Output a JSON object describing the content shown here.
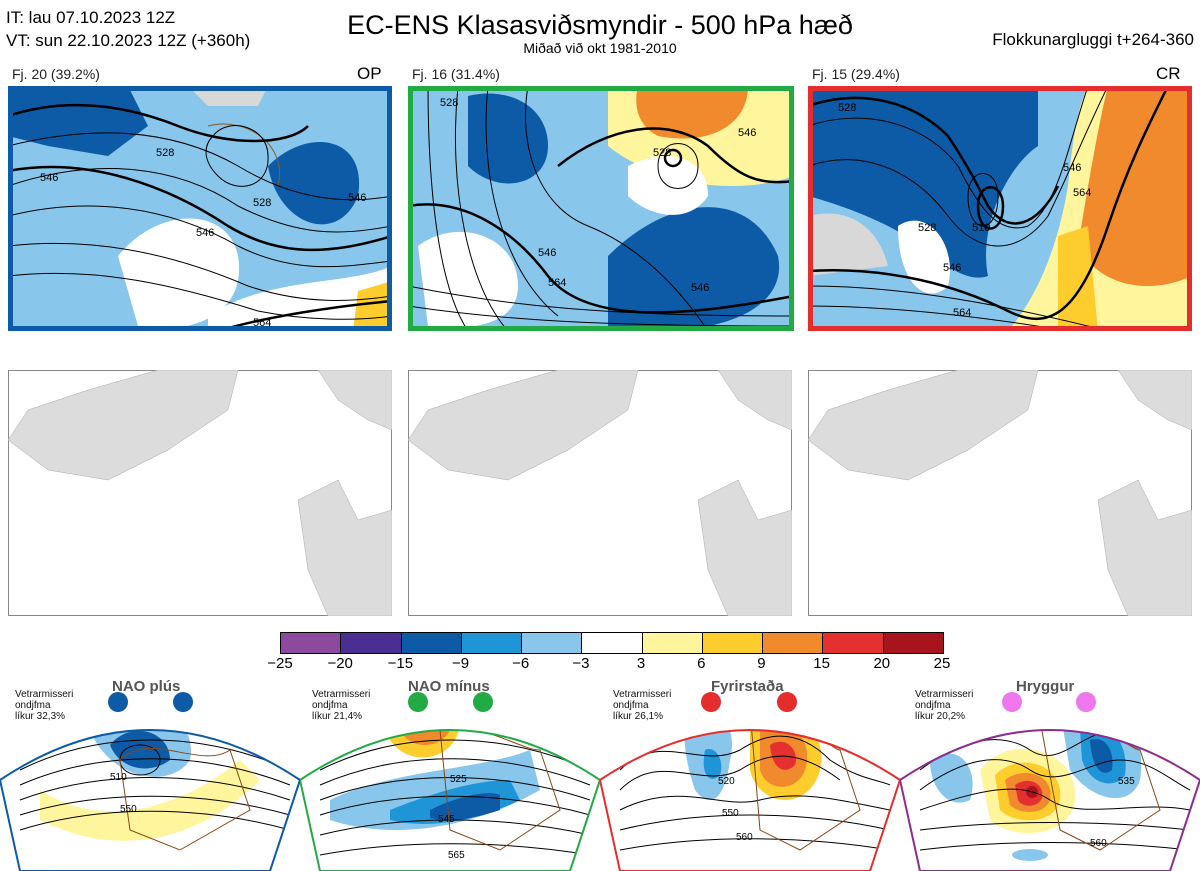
{
  "header": {
    "init_time": "IT: lau 07.10.2023 12Z",
    "valid_time": "VT: sun 22.10.2023 12Z  (+360h)",
    "title": "EC-ENS Klasasviðsmyndir - 500 hPa hæð",
    "subtitle": "Miðað við okt 1981-2010",
    "window": "Flokkunargluggi t+264-360"
  },
  "clusters": [
    {
      "label": "Fj. 20 (39.2%)",
      "tag": "OP",
      "border_color": "#0d5aa7",
      "contours": [
        "528",
        "546",
        "546",
        "546",
        "564",
        "528"
      ]
    },
    {
      "label": "Fj. 16 (31.4%)",
      "tag": "",
      "border_color": "#22aa44",
      "contours": [
        "528",
        "528",
        "546",
        "546",
        "564",
        "546"
      ]
    },
    {
      "label": "Fj. 15 (29.4%)",
      "tag": "CR",
      "border_color": "#e52d2d",
      "contours": [
        "528",
        "510",
        "528",
        "546",
        "546",
        "564",
        "564"
      ]
    }
  ],
  "colorbar": {
    "colors": [
      "#8c4a9e",
      "#4a2e91",
      "#0d5aa7",
      "#1f94d6",
      "#88c6ec",
      "#ffffff",
      "#fff59d",
      "#fccd2c",
      "#f08a2c",
      "#e53030",
      "#a8141b"
    ],
    "ticks": [
      "−25",
      "−20",
      "−15",
      "−9",
      "−6",
      "−3",
      "3",
      "6",
      "9",
      "15",
      "20",
      "25"
    ]
  },
  "regimes": [
    {
      "title": "NAO plús",
      "note1": "Vetrarmisseri",
      "note2": "ondjfma",
      "note3": "líkur 32,3%",
      "color": "#0d5aa7",
      "labels": [
        "510",
        "550"
      ]
    },
    {
      "title": "NAO mínus",
      "note1": "Vetrarmisseri",
      "note2": "ondjfma",
      "note3": "líkur 21,4%",
      "color": "#22aa44",
      "labels": [
        "525",
        "545",
        "565"
      ]
    },
    {
      "title": "Fyrirstaða",
      "note1": "Vetrarmisseri",
      "note2": "ondjfma",
      "note3": "líkur 26,1%",
      "color": "#e52d2d",
      "labels": [
        "520",
        "550",
        "560"
      ]
    },
    {
      "title": "Hryggur",
      "note1": "Vetrarmisseri",
      "note2": "ondjfma",
      "note3": "líkur 20,2%",
      "color": "#8e2c8e",
      "dot_color": "#ee77ee",
      "labels": [
        "505",
        "535",
        "560"
      ]
    }
  ]
}
